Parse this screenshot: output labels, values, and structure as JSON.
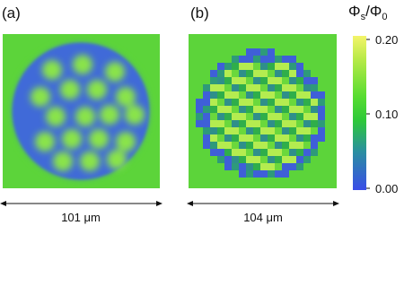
{
  "panels": [
    {
      "label": "(a)",
      "scale_label": "101 μm"
    },
    {
      "label": "(b)",
      "scale_label": "104 μm"
    }
  ],
  "colorbar": {
    "title": {
      "base1": "Φ",
      "sub1": "s",
      "base2": "/Φ",
      "sub2": "0"
    },
    "lim": [
      0,
      0.2
    ],
    "ticks": [
      {
        "value": 0.2,
        "label": "0.20"
      },
      {
        "value": 0.1,
        "label": "0.10"
      },
      {
        "value": 0,
        "label": "0.00"
      }
    ]
  }
}
